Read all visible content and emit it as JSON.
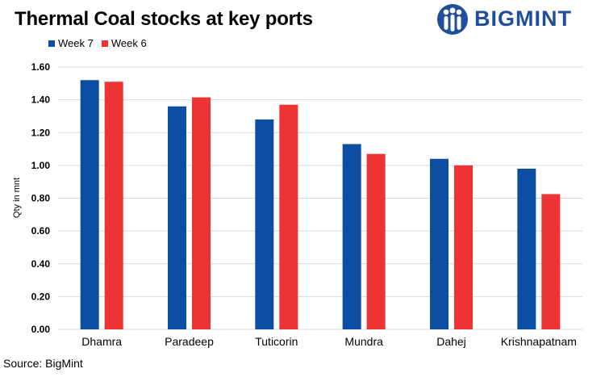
{
  "header": {
    "title": "Thermal Coal stocks at key ports",
    "brand_name": "BIGMINT",
    "logo_icon": "people-figures-icon"
  },
  "footer": {
    "source": "Source: BigMint"
  },
  "colors": {
    "week7": "#0b4ea2",
    "week6": "#ee3334",
    "brand": "#1f4e9a",
    "grid": "#d9d9d9"
  },
  "chart_data": {
    "type": "bar",
    "title": "Thermal Coal stocks at key ports",
    "xlabel": "",
    "ylabel": "Qty in mnt",
    "categories": [
      "Dhamra",
      "Paradeep",
      "Tuticorin",
      "Mundra",
      "Dahej",
      "Krishnapatnam"
    ],
    "series": [
      {
        "name": "Week 7",
        "color": "#0b4ea2",
        "values": [
          1.52,
          1.36,
          1.28,
          1.13,
          1.04,
          0.98
        ]
      },
      {
        "name": "Week 6",
        "color": "#ee3334",
        "values": [
          1.51,
          1.415,
          1.37,
          1.07,
          1.0,
          0.825
        ]
      }
    ],
    "ylim": [
      0,
      1.6
    ],
    "yticks": [
      "0.00",
      "0.20",
      "0.40",
      "0.60",
      "0.80",
      "1.00",
      "1.20",
      "1.40",
      "1.60"
    ],
    "grid": true,
    "legend_position": "top-left"
  }
}
